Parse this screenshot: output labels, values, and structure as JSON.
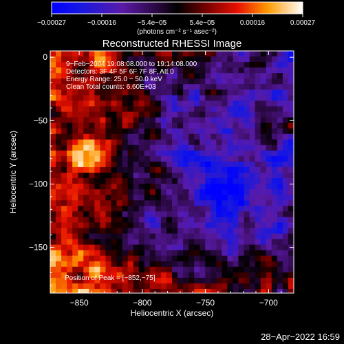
{
  "chart_data": {
    "type": "heatmap",
    "title": "Reconstructed RHESSI Image",
    "xlabel": "Heliocentric X (arcsec)",
    "ylabel": "Heliocentric Y (arcsec)",
    "xlim": [
      -873,
      -680
    ],
    "ylim": [
      -186,
      5
    ],
    "x_ticks": [
      -850,
      -800,
      -750,
      -700
    ],
    "x_tick_labels": [
      "−850",
      "−800",
      "−750",
      "−700"
    ],
    "y_ticks": [
      0,
      -50,
      -100,
      -150
    ],
    "y_tick_labels": [
      "0",
      "−50",
      "−100",
      "−150"
    ],
    "colorbar": {
      "range": [
        -0.00027,
        0.00027
      ],
      "tick_labels": [
        "−0.00027",
        "−0.00016",
        "−5.4e−05",
        "5.4e−05",
        "0.00016",
        "0.00027"
      ],
      "unit_label": "(photons cm⁻² s⁻¹ asec⁻²)"
    },
    "annotations": {
      "time": "9−Feb−2004 19:08:08.000 to 19:14:08.000",
      "detectors": "Detectors: 3F 4F 5F 6F 7F 8F, Att 0",
      "energy": "Energy Range: 25.0 − 50.0 keV",
      "clean": "Clean    Total counts: 6.60E+03",
      "peak": "Position of Peak = [−852,−75]"
    }
  },
  "footer": {
    "timestamp": "28−Apr−2022 16:59"
  }
}
